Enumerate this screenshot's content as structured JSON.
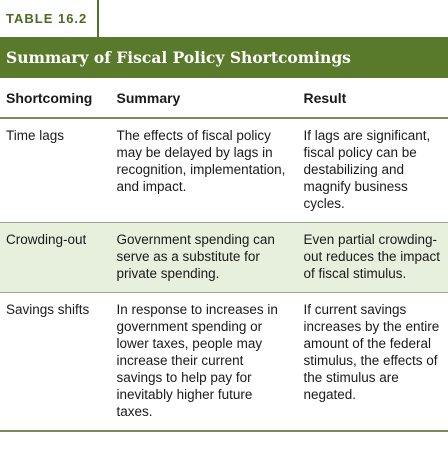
{
  "table_tag": "TABLE 16.2",
  "title": "Summary of Fiscal Policy Shortcomings",
  "headers": {
    "shortcoming": "Shortcoming",
    "summary": "Summary",
    "result": "Result"
  },
  "rows": [
    {
      "shortcoming": "Time lags",
      "summary": "The effects of fiscal policy may be delayed by lags in recognition, implementation, and impact.",
      "result": "If lags are significant, fiscal policy can be destabilizing and magnify business cycles."
    },
    {
      "shortcoming": "Crowding-out",
      "summary": "Government spending can serve as a substitute for private spending.",
      "result": "Even partial crowding-out reduces the impact of fiscal stimulus."
    },
    {
      "shortcoming": "Savings shifts",
      "summary": "In response to increases in government spending or lower taxes, people may increase their current savings to help pay for inevitably higher future taxes.",
      "result": "If current savings increases by the entire amount of the federal stimulus, the effects of the stimulus are negated."
    }
  ],
  "colors": {
    "title_bar": "#5a7a2b",
    "tag_text": "#4a6b22",
    "shaded_row": "#e6f0dc"
  }
}
